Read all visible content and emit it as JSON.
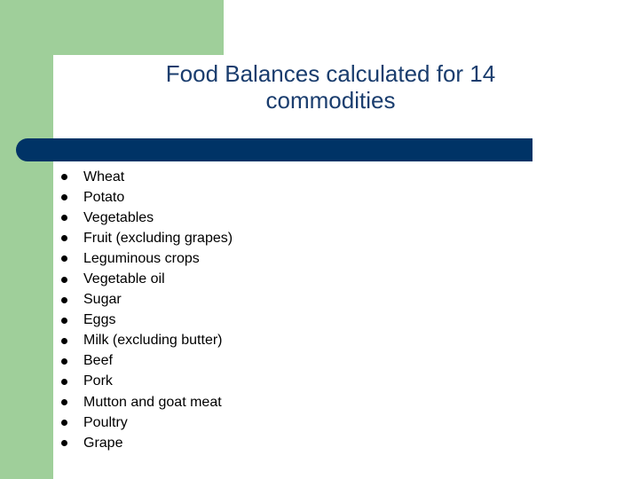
{
  "slide": {
    "title": "Food Balances calculated for 14 commodities",
    "items": [
      "Wheat",
      "Potato",
      "Vegetables",
      "Fruit (excluding grapes)",
      "Leguminous crops",
      "Vegetable oil",
      "Sugar",
      "Eggs",
      "Milk (excluding butter)",
      "Beef",
      "Pork",
      "Mutton and goat meat",
      "Poultry",
      "Grape"
    ]
  },
  "colors": {
    "accent_green": "#9fcf9a",
    "bar_navy": "#003366",
    "title_text": "#1a3d6e"
  }
}
